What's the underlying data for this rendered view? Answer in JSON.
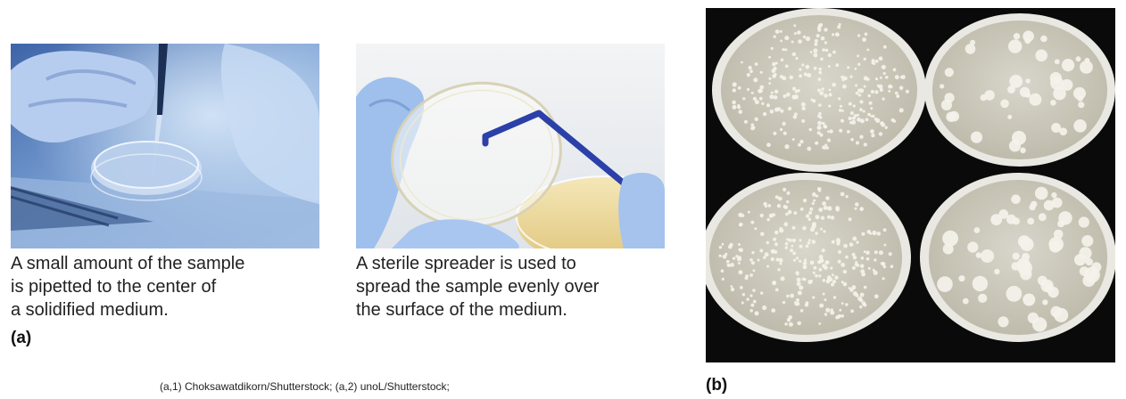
{
  "panel_a": {
    "label": "(a)",
    "steps": [
      {
        "image_alt": "Gloved hand pipetting sample into a petri dish",
        "caption_lines": [
          "A small amount of the sample",
          "is pipetted to the center of",
          "a solidified medium."
        ]
      },
      {
        "image_alt": "Gloved hands using a sterile spreader over a petri dish",
        "caption_lines": [
          "A sterile spreader is used to",
          "spread the sample evenly over",
          "the surface of the medium."
        ]
      }
    ]
  },
  "panel_b": {
    "label": "(b)",
    "image_alt": "Four agar plates with bacterial colonies on a black background"
  },
  "credit": "(a,1) Choksawatdikorn/Shutterstock; (a,2) unoL/Shutterstock;",
  "colors": {
    "glove_blue": "#8fb3e0",
    "lab_blue": "#5b87c4",
    "spreader_blue": "#2b40a8",
    "agar": "#d9d6c8",
    "colony": "#f4f2ea",
    "background_b": "#0a0a0a"
  }
}
